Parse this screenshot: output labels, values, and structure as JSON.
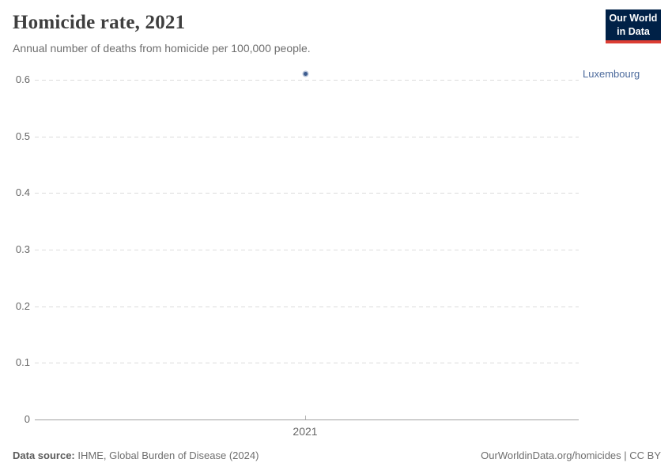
{
  "header": {
    "title": "Homicide rate, 2021",
    "subtitle": "Annual number of deaths from homicide per 100,000 people."
  },
  "logo": {
    "line1": "Our World",
    "line2": "in Data",
    "bg_color": "#002147",
    "accent_color": "#dc3d33"
  },
  "chart_data": {
    "type": "scatter",
    "title": "Homicide rate, 2021",
    "subtitle": "Annual number of deaths from homicide per 100,000 people.",
    "xlabel": "",
    "ylabel": "",
    "x": [
      2021
    ],
    "series": [
      {
        "name": "Luxembourg",
        "x": [
          2021
        ],
        "values": [
          0.61
        ]
      }
    ],
    "xticks": [
      {
        "value": 2021,
        "label": "2021"
      }
    ],
    "yticks": [
      {
        "value": 0,
        "label": "0"
      },
      {
        "value": 0.1,
        "label": "0.1"
      },
      {
        "value": 0.2,
        "label": "0.2"
      },
      {
        "value": 0.3,
        "label": "0.3"
      },
      {
        "value": 0.4,
        "label": "0.4"
      },
      {
        "value": 0.5,
        "label": "0.5"
      },
      {
        "value": 0.6,
        "label": "0.6"
      }
    ],
    "ylim": [
      0,
      0.6
    ],
    "grid": "horizontal-dashed",
    "legend_position": "right-of-point",
    "point_color": "#3d5c8f",
    "label_color": "#4c6a9c",
    "gridline_color": "#dcdcdc",
    "axis_color": "#a1a1a1"
  },
  "footer": {
    "source_label": "Data source:",
    "source_value": "IHME, Global Burden of Disease (2024)",
    "link": "OurWorldinData.org/homicides | CC BY"
  }
}
